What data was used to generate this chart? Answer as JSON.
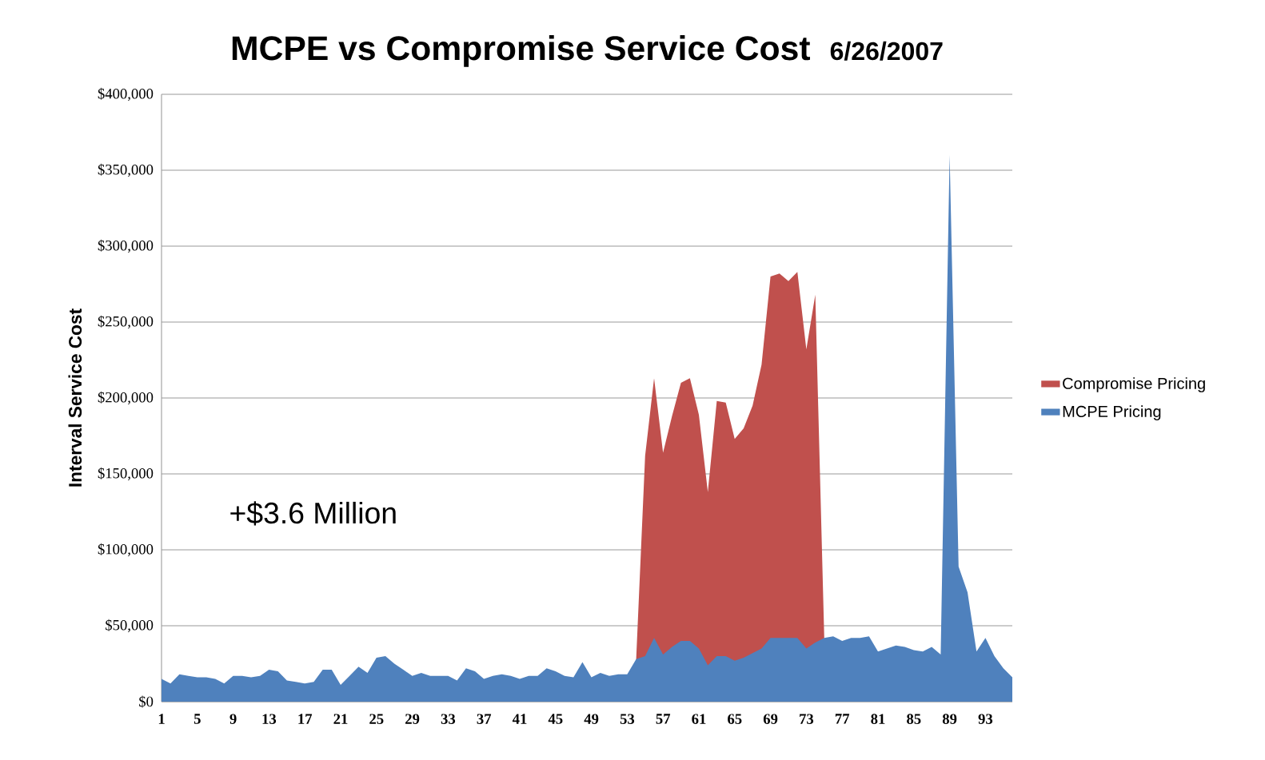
{
  "chart_data": {
    "type": "area",
    "title": "MCPE vs Compromise Service Cost",
    "subtitle": "6/26/2007",
    "ylabel": "Interval Service Cost",
    "categories": [
      "1",
      null,
      null,
      null,
      "5",
      null,
      null,
      null,
      "9",
      null,
      null,
      null,
      "13",
      null,
      null,
      null,
      "17",
      null,
      null,
      null,
      "21",
      null,
      null,
      null,
      "25",
      null,
      null,
      null,
      "29",
      null,
      null,
      null,
      "33",
      null,
      null,
      null,
      "37",
      null,
      null,
      null,
      "41",
      null,
      null,
      null,
      "45",
      null,
      null,
      null,
      "49",
      null,
      null,
      null,
      "53",
      null,
      null,
      null,
      "57",
      null,
      null,
      null,
      "61",
      null,
      null,
      null,
      "65",
      null,
      null,
      null,
      "69",
      null,
      null,
      null,
      "73",
      null,
      null,
      null,
      "77",
      null,
      null,
      null,
      "81",
      null,
      null,
      null,
      "85",
      null,
      null,
      null,
      "89",
      null,
      null,
      null,
      "93",
      null,
      null,
      null
    ],
    "series": [
      {
        "name": "Compromise Pricing",
        "color": "#c0504d",
        "values": [
          null,
          null,
          null,
          null,
          null,
          null,
          null,
          null,
          null,
          null,
          null,
          null,
          null,
          null,
          null,
          null,
          null,
          null,
          null,
          null,
          null,
          null,
          null,
          null,
          null,
          null,
          null,
          null,
          null,
          null,
          null,
          null,
          null,
          null,
          null,
          null,
          null,
          null,
          null,
          null,
          null,
          null,
          null,
          null,
          null,
          null,
          null,
          null,
          null,
          null,
          null,
          null,
          null,
          28000,
          162000,
          213000,
          164000,
          188000,
          210000,
          213000,
          189000,
          138000,
          198000,
          197000,
          173000,
          180000,
          195000,
          222000,
          280000,
          282000,
          277000,
          283000,
          232000,
          268000,
          42000,
          null,
          null,
          null,
          null,
          null,
          null,
          null,
          null,
          null,
          null,
          null,
          null,
          null,
          null,
          null,
          null,
          null,
          null,
          null,
          null,
          null
        ]
      },
      {
        "name": "MCPE Pricing",
        "color": "#4f81bd",
        "values": [
          15000,
          12000,
          18000,
          17000,
          16000,
          16000,
          15000,
          12000,
          17000,
          17000,
          16000,
          17000,
          21000,
          20000,
          14000,
          13000,
          12000,
          13000,
          21000,
          21000,
          11000,
          17000,
          23000,
          19000,
          29000,
          30000,
          25000,
          21000,
          17000,
          19000,
          17000,
          17000,
          17000,
          14000,
          22000,
          20000,
          15000,
          17000,
          18000,
          17000,
          15000,
          17000,
          17000,
          22000,
          20000,
          17000,
          16000,
          26000,
          16000,
          19000,
          17000,
          18000,
          18000,
          28000,
          30000,
          42000,
          31000,
          36000,
          40000,
          40000,
          35000,
          24000,
          30000,
          30000,
          27000,
          29000,
          32000,
          35000,
          42000,
          42000,
          42000,
          42000,
          35000,
          39000,
          42000,
          43000,
          40000,
          42000,
          42000,
          43000,
          33000,
          35000,
          37000,
          36000,
          34000,
          33000,
          36000,
          31000,
          360000,
          89000,
          72000,
          33000,
          42000,
          30000,
          22000,
          16000
        ]
      }
    ],
    "ylim": [
      0,
      400000
    ],
    "yticks": [
      {
        "value": 0,
        "label": "$0"
      },
      {
        "value": 50000,
        "label": "$50,000"
      },
      {
        "value": 100000,
        "label": "$100,000"
      },
      {
        "value": 150000,
        "label": "$150,000"
      },
      {
        "value": 200000,
        "label": "$200,000"
      },
      {
        "value": 250000,
        "label": "$250,000"
      },
      {
        "value": 300000,
        "label": "$300,000"
      },
      {
        "value": 350000,
        "label": "$350,000"
      },
      {
        "value": 400000,
        "label": "$400,000"
      }
    ],
    "grid": "y",
    "legend": "right",
    "annotations": [
      "+$3.6 Million"
    ]
  }
}
